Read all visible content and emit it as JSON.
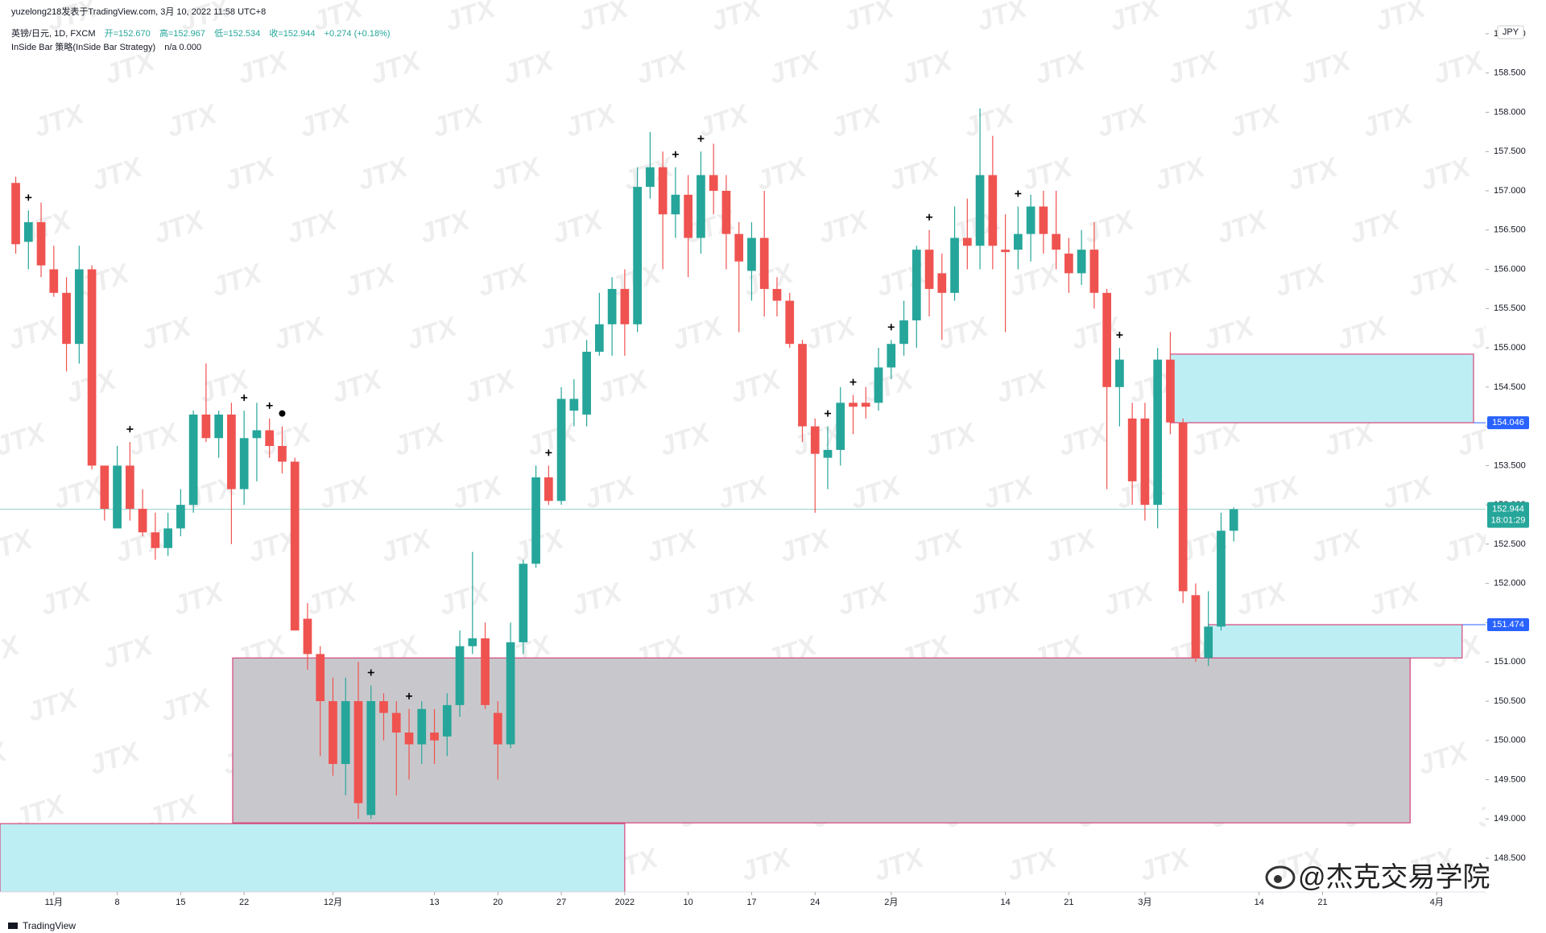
{
  "header": {
    "publisher": "yuzelong218发表于TradingView.com, 3月 10, 2022 11:58 UTC+8",
    "symbol": "英镑/日元, 1D, FXCM",
    "open": "开=152.670",
    "high": "高=152.967",
    "low": "低=152.534",
    "close": "收=152.944",
    "change": "+0.274 (+0.18%)",
    "indicator": "InSide Bar 策略(InSide Bar Strategy)",
    "indicator_values": "n/a  0.000"
  },
  "chart_data": {
    "type": "candlestick",
    "currency": "JPY",
    "up_color": "#26a69a",
    "down_color": "#ef5350",
    "open": [
      157.1,
      156.35,
      156.6,
      156.0,
      155.7,
      155.05,
      156.0,
      153.5,
      152.7,
      153.5,
      152.95,
      152.65,
      152.45,
      152.7,
      153.0,
      154.15,
      153.85,
      154.15,
      153.2,
      153.85,
      153.95,
      153.75,
      153.55,
      151.55,
      151.1,
      150.5,
      149.7,
      150.5,
      149.05,
      150.5,
      150.35,
      150.1,
      149.95,
      150.1,
      150.05,
      150.45,
      151.2,
      151.3,
      150.35,
      149.95,
      151.25,
      152.25,
      153.35,
      153.05,
      154.2,
      154.15,
      154.95,
      155.3,
      155.75,
      155.3,
      157.05,
      157.3,
      156.7,
      156.95,
      156.4,
      157.2,
      157.0,
      156.45,
      155.98,
      156.4,
      155.75,
      155.6,
      155.05,
      154.0,
      153.6,
      153.7,
      154.3,
      154.3,
      154.3,
      154.75,
      155.05,
      155.35,
      156.25,
      155.95,
      155.7,
      156.4,
      156.3,
      157.2,
      156.25,
      156.25,
      156.45,
      156.8,
      156.45,
      156.2,
      155.95,
      156.25,
      155.7,
      154.5,
      154.1,
      154.1,
      153.0,
      154.85,
      154.05,
      151.85,
      151.05,
      151.45,
      152.67
    ],
    "high": [
      157.18,
      156.75,
      156.85,
      156.3,
      155.9,
      156.3,
      156.05,
      153.5,
      153.75,
      153.8,
      153.2,
      152.9,
      152.9,
      153.2,
      154.2,
      154.8,
      154.2,
      154.3,
      154.2,
      154.3,
      154.1,
      154.0,
      153.6,
      151.75,
      151.2,
      150.8,
      150.8,
      151.0,
      150.7,
      150.6,
      150.5,
      150.4,
      150.5,
      150.4,
      150.6,
      151.4,
      152.4,
      151.5,
      150.5,
      151.5,
      152.3,
      153.5,
      153.5,
      154.5,
      154.6,
      155.1,
      155.7,
      155.9,
      156.0,
      157.3,
      157.75,
      157.5,
      157.3,
      157.2,
      157.5,
      157.6,
      157.2,
      156.6,
      156.6,
      157.0,
      155.9,
      155.7,
      155.1,
      154.1,
      154.0,
      154.5,
      154.4,
      154.5,
      155.0,
      155.1,
      155.6,
      156.3,
      156.5,
      156.2,
      156.8,
      156.9,
      158.05,
      157.7,
      156.7,
      156.8,
      156.95,
      157.0,
      157.0,
      156.4,
      156.5,
      156.6,
      155.75,
      155.0,
      154.3,
      154.3,
      155.0,
      155.2,
      154.1,
      152.0,
      151.9,
      152.9,
      152.967
    ],
    "low": [
      156.2,
      156.0,
      155.9,
      155.65,
      154.7,
      154.8,
      153.45,
      152.8,
      152.7,
      152.8,
      152.6,
      152.3,
      152.35,
      152.6,
      152.9,
      153.8,
      153.6,
      152.5,
      153.0,
      153.3,
      153.6,
      153.4,
      151.4,
      150.9,
      149.8,
      149.55,
      149.3,
      149.0,
      149.0,
      150.0,
      149.3,
      149.5,
      149.7,
      149.7,
      149.8,
      150.3,
      151.1,
      150.4,
      149.5,
      149.9,
      151.1,
      152.2,
      153.0,
      153.0,
      154.0,
      154.0,
      154.9,
      154.9,
      154.9,
      155.2,
      156.9,
      156.0,
      156.4,
      155.9,
      156.2,
      156.7,
      156.0,
      155.2,
      155.6,
      155.4,
      155.4,
      155.0,
      153.8,
      152.9,
      153.2,
      153.5,
      153.9,
      154.1,
      154.2,
      154.6,
      154.9,
      155.0,
      155.4,
      155.1,
      155.6,
      156.0,
      156.0,
      156.0,
      155.2,
      156.0,
      156.1,
      156.2,
      156.0,
      155.7,
      155.8,
      155.5,
      153.2,
      154.0,
      153.0,
      152.8,
      152.7,
      153.9,
      151.75,
      151.0,
      150.95,
      151.4,
      152.534
    ],
    "close": [
      156.32,
      156.6,
      156.05,
      155.7,
      155.05,
      156.0,
      153.5,
      152.95,
      153.5,
      152.95,
      152.65,
      152.45,
      152.7,
      153.0,
      154.15,
      153.85,
      154.15,
      153.2,
      153.85,
      153.95,
      153.75,
      153.55,
      151.4,
      151.1,
      150.5,
      149.7,
      150.5,
      149.2,
      150.5,
      150.35,
      150.1,
      149.95,
      150.4,
      150.0,
      150.45,
      151.2,
      151.3,
      150.45,
      149.95,
      151.25,
      152.25,
      153.35,
      153.05,
      154.35,
      154.35,
      154.95,
      155.3,
      155.75,
      155.3,
      157.05,
      157.3,
      156.7,
      156.95,
      156.4,
      157.2,
      157.0,
      156.45,
      156.1,
      156.4,
      155.75,
      155.6,
      155.05,
      154.0,
      153.65,
      153.7,
      154.3,
      154.25,
      154.25,
      154.75,
      155.05,
      155.35,
      156.25,
      155.75,
      155.7,
      156.4,
      156.3,
      157.2,
      156.3,
      156.22,
      156.45,
      156.8,
      156.45,
      156.25,
      155.95,
      156.25,
      155.7,
      154.5,
      154.85,
      153.3,
      153.0,
      154.85,
      154.05,
      151.9,
      151.05,
      151.45,
      152.67,
      152.944
    ],
    "xlim": [
      -1.24,
      115.85
    ],
    "xticks": [
      {
        "value": 3,
        "label": "11月"
      },
      {
        "value": 8,
        "label": "8"
      },
      {
        "value": 13,
        "label": "15"
      },
      {
        "value": 18,
        "label": "22"
      },
      {
        "value": 25,
        "label": "12月"
      },
      {
        "value": 33,
        "label": "13"
      },
      {
        "value": 38,
        "label": "20"
      },
      {
        "value": 43,
        "label": "27"
      },
      {
        "value": 48,
        "label": "2022"
      },
      {
        "value": 53,
        "label": "10"
      },
      {
        "value": 58,
        "label": "17"
      },
      {
        "value": 63,
        "label": "24"
      },
      {
        "value": 69,
        "label": "2月"
      },
      {
        "value": 78,
        "label": "14"
      },
      {
        "value": 83,
        "label": "21"
      },
      {
        "value": 89,
        "label": "3月"
      },
      {
        "value": 98,
        "label": "14"
      },
      {
        "value": 103,
        "label": "21"
      },
      {
        "value": 112,
        "label": "4月"
      }
    ],
    "ylim": [
      148.07,
      159.43
    ],
    "yticks": [
      {
        "value": 148.5,
        "label": "148.500"
      },
      {
        "value": 149,
        "label": "149.000"
      },
      {
        "value": 149.5,
        "label": "149.500"
      },
      {
        "value": 150,
        "label": "150.000"
      },
      {
        "value": 150.5,
        "label": "150.500"
      },
      {
        "value": 151,
        "label": "151.000"
      },
      {
        "value": 151.5,
        "label": "151.500"
      },
      {
        "value": 152,
        "label": "152.000"
      },
      {
        "value": 152.5,
        "label": "152.500"
      },
      {
        "value": 153,
        "label": "153.000"
      },
      {
        "value": 153.5,
        "label": "153.500"
      },
      {
        "value": 154,
        "label": "154.000"
      },
      {
        "value": 154.5,
        "label": "154.500"
      },
      {
        "value": 155,
        "label": "155.000"
      },
      {
        "value": 155.5,
        "label": "155.500"
      },
      {
        "value": 156,
        "label": "156.000"
      },
      {
        "value": 156.5,
        "label": "156.500"
      },
      {
        "value": 157,
        "label": "157.000"
      },
      {
        "value": 157.5,
        "label": "157.500"
      },
      {
        "value": 158,
        "label": "158.000"
      },
      {
        "value": 158.5,
        "label": "158.500"
      },
      {
        "value": 159,
        "label": "159.000"
      }
    ],
    "zones": [
      {
        "from": 17.1,
        "to": 109.9,
        "top": 151.05,
        "bottom": 148.95,
        "color": "#c8c8cc"
      },
      {
        "from": -1.24,
        "to": 48.0,
        "top": 148.94,
        "bottom": 148.07,
        "color": "#bdeef4"
      },
      {
        "from": 91.0,
        "to": 114.9,
        "top": 154.92,
        "bottom": 154.046,
        "color": "#bdeef4"
      },
      {
        "from": 94.0,
        "to": 114.0,
        "top": 151.474,
        "bottom": 151.05,
        "color": "#bdeef4"
      }
    ],
    "signals": [
      1,
      9,
      18,
      20,
      28,
      31,
      42,
      52,
      54,
      64,
      66,
      69,
      72,
      79,
      87
    ],
    "exit_signals": [
      21
    ],
    "price_labels": [
      {
        "value": 154.046,
        "label": "154.046",
        "color": "#2962ff"
      },
      {
        "value": 151.474,
        "label": "151.474",
        "color": "#2962ff"
      }
    ],
    "last_price": {
      "value": 152.944,
      "label": "152.944",
      "countdown": "18:01:29",
      "color": "#26a69a"
    }
  },
  "watermark": "JTX",
  "credit": "@杰克交易学院",
  "footer": "TradingView"
}
